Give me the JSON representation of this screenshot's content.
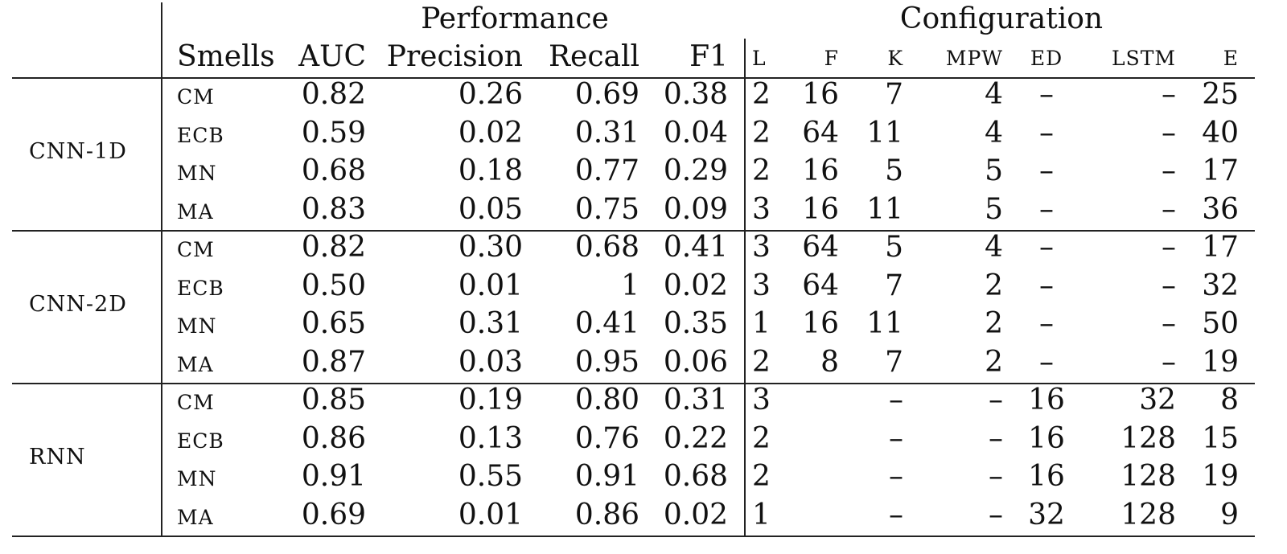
{
  "groups": {
    "performance": "Performance",
    "configuration": "Configuration"
  },
  "columns": [
    "Smells",
    "AUC",
    "Precision",
    "Recall",
    "F1",
    "L",
    "F",
    "K",
    "MPW",
    "ED",
    "LSTM",
    "E"
  ],
  "models": [
    {
      "name_a": "CNN-1",
      "name_b": "D",
      "rows": [
        [
          "CM",
          "0.82",
          "0.26",
          "0.69",
          "0.38",
          "2",
          "16",
          "7",
          "4",
          "–",
          "–",
          "25"
        ],
        [
          "ECB",
          "0.59",
          "0.02",
          "0.31",
          "0.04",
          "2",
          "64",
          "11",
          "4",
          "–",
          "–",
          "40"
        ],
        [
          "MN",
          "0.68",
          "0.18",
          "0.77",
          "0.29",
          "2",
          "16",
          "5",
          "5",
          "–",
          "–",
          "17"
        ],
        [
          "MA",
          "0.83",
          "0.05",
          "0.75",
          "0.09",
          "3",
          "16",
          "11",
          "5",
          "–",
          "–",
          "36"
        ]
      ]
    },
    {
      "name_a": "CNN-2",
      "name_b": "D",
      "rows": [
        [
          "CM",
          "0.82",
          "0.30",
          "0.68",
          "0.41",
          "3",
          "64",
          "5",
          "4",
          "–",
          "–",
          "17"
        ],
        [
          "ECB",
          "0.50",
          "0.01",
          "1",
          "0.02",
          "3",
          "64",
          "7",
          "2",
          "–",
          "–",
          "32"
        ],
        [
          "MN",
          "0.65",
          "0.31",
          "0.41",
          "0.35",
          "1",
          "16",
          "11",
          "2",
          "–",
          "–",
          "50"
        ],
        [
          "MA",
          "0.87",
          "0.03",
          "0.95",
          "0.06",
          "2",
          "8",
          "7",
          "2",
          "–",
          "–",
          "19"
        ]
      ]
    },
    {
      "name_a": "RNN",
      "name_b": "",
      "rows": [
        [
          "CM",
          "0.85",
          "0.19",
          "0.80",
          "0.31",
          "3",
          "",
          "–",
          "–",
          "16",
          "32",
          "8"
        ],
        [
          "ECB",
          "0.86",
          "0.13",
          "0.76",
          "0.22",
          "2",
          "",
          "–",
          "–",
          "16",
          "128",
          "15"
        ],
        [
          "MN",
          "0.91",
          "0.55",
          "0.91",
          "0.68",
          "2",
          "",
          "–",
          "–",
          "16",
          "128",
          "19"
        ],
        [
          "MA",
          "0.69",
          "0.01",
          "0.86",
          "0.02",
          "1",
          "",
          "–",
          "–",
          "32",
          "128",
          "9"
        ]
      ]
    }
  ]
}
